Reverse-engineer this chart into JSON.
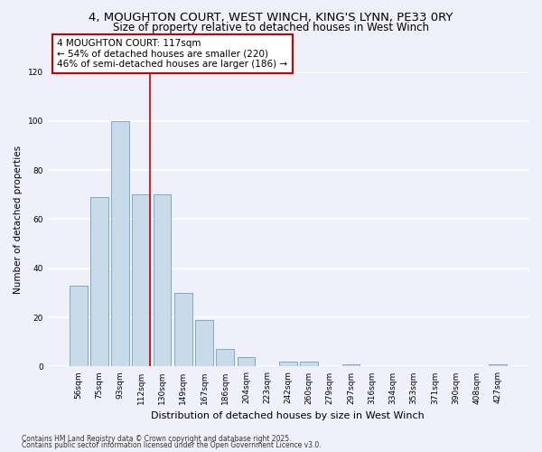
{
  "title": "4, MOUGHTON COURT, WEST WINCH, KING'S LYNN, PE33 0RY",
  "subtitle": "Size of property relative to detached houses in West Winch",
  "xlabel": "Distribution of detached houses by size in West Winch",
  "ylabel": "Number of detached properties",
  "bar_color": "#c9daea",
  "bar_edge_color": "#7aaac8",
  "categories": [
    "56sqm",
    "75sqm",
    "93sqm",
    "112sqm",
    "130sqm",
    "149sqm",
    "167sqm",
    "186sqm",
    "204sqm",
    "223sqm",
    "242sqm",
    "260sqm",
    "279sqm",
    "297sqm",
    "316sqm",
    "334sqm",
    "353sqm",
    "371sqm",
    "390sqm",
    "408sqm",
    "427sqm"
  ],
  "values": [
    33,
    69,
    100,
    70,
    70,
    30,
    19,
    7,
    4,
    0,
    2,
    2,
    0,
    1,
    0,
    0,
    0,
    0,
    0,
    0,
    1
  ],
  "ylim": [
    0,
    120
  ],
  "yticks": [
    0,
    20,
    40,
    60,
    80,
    100,
    120
  ],
  "vline_index": 3,
  "vline_color": "#cc0000",
  "annotation_text": "4 MOUGHTON COURT: 117sqm\n← 54% of detached houses are smaller (220)\n46% of semi-detached houses are larger (186) →",
  "annotation_box_facecolor": "#ffffff",
  "annotation_box_edgecolor": "#cc0000",
  "background_color": "#f0f0fa",
  "grid_color": "#ffffff",
  "title_fontsize": 9.5,
  "subtitle_fontsize": 8.5,
  "footnote1": "Contains HM Land Registry data © Crown copyright and database right 2025.",
  "footnote2": "Contains public sector information licensed under the Open Government Licence v3.0."
}
